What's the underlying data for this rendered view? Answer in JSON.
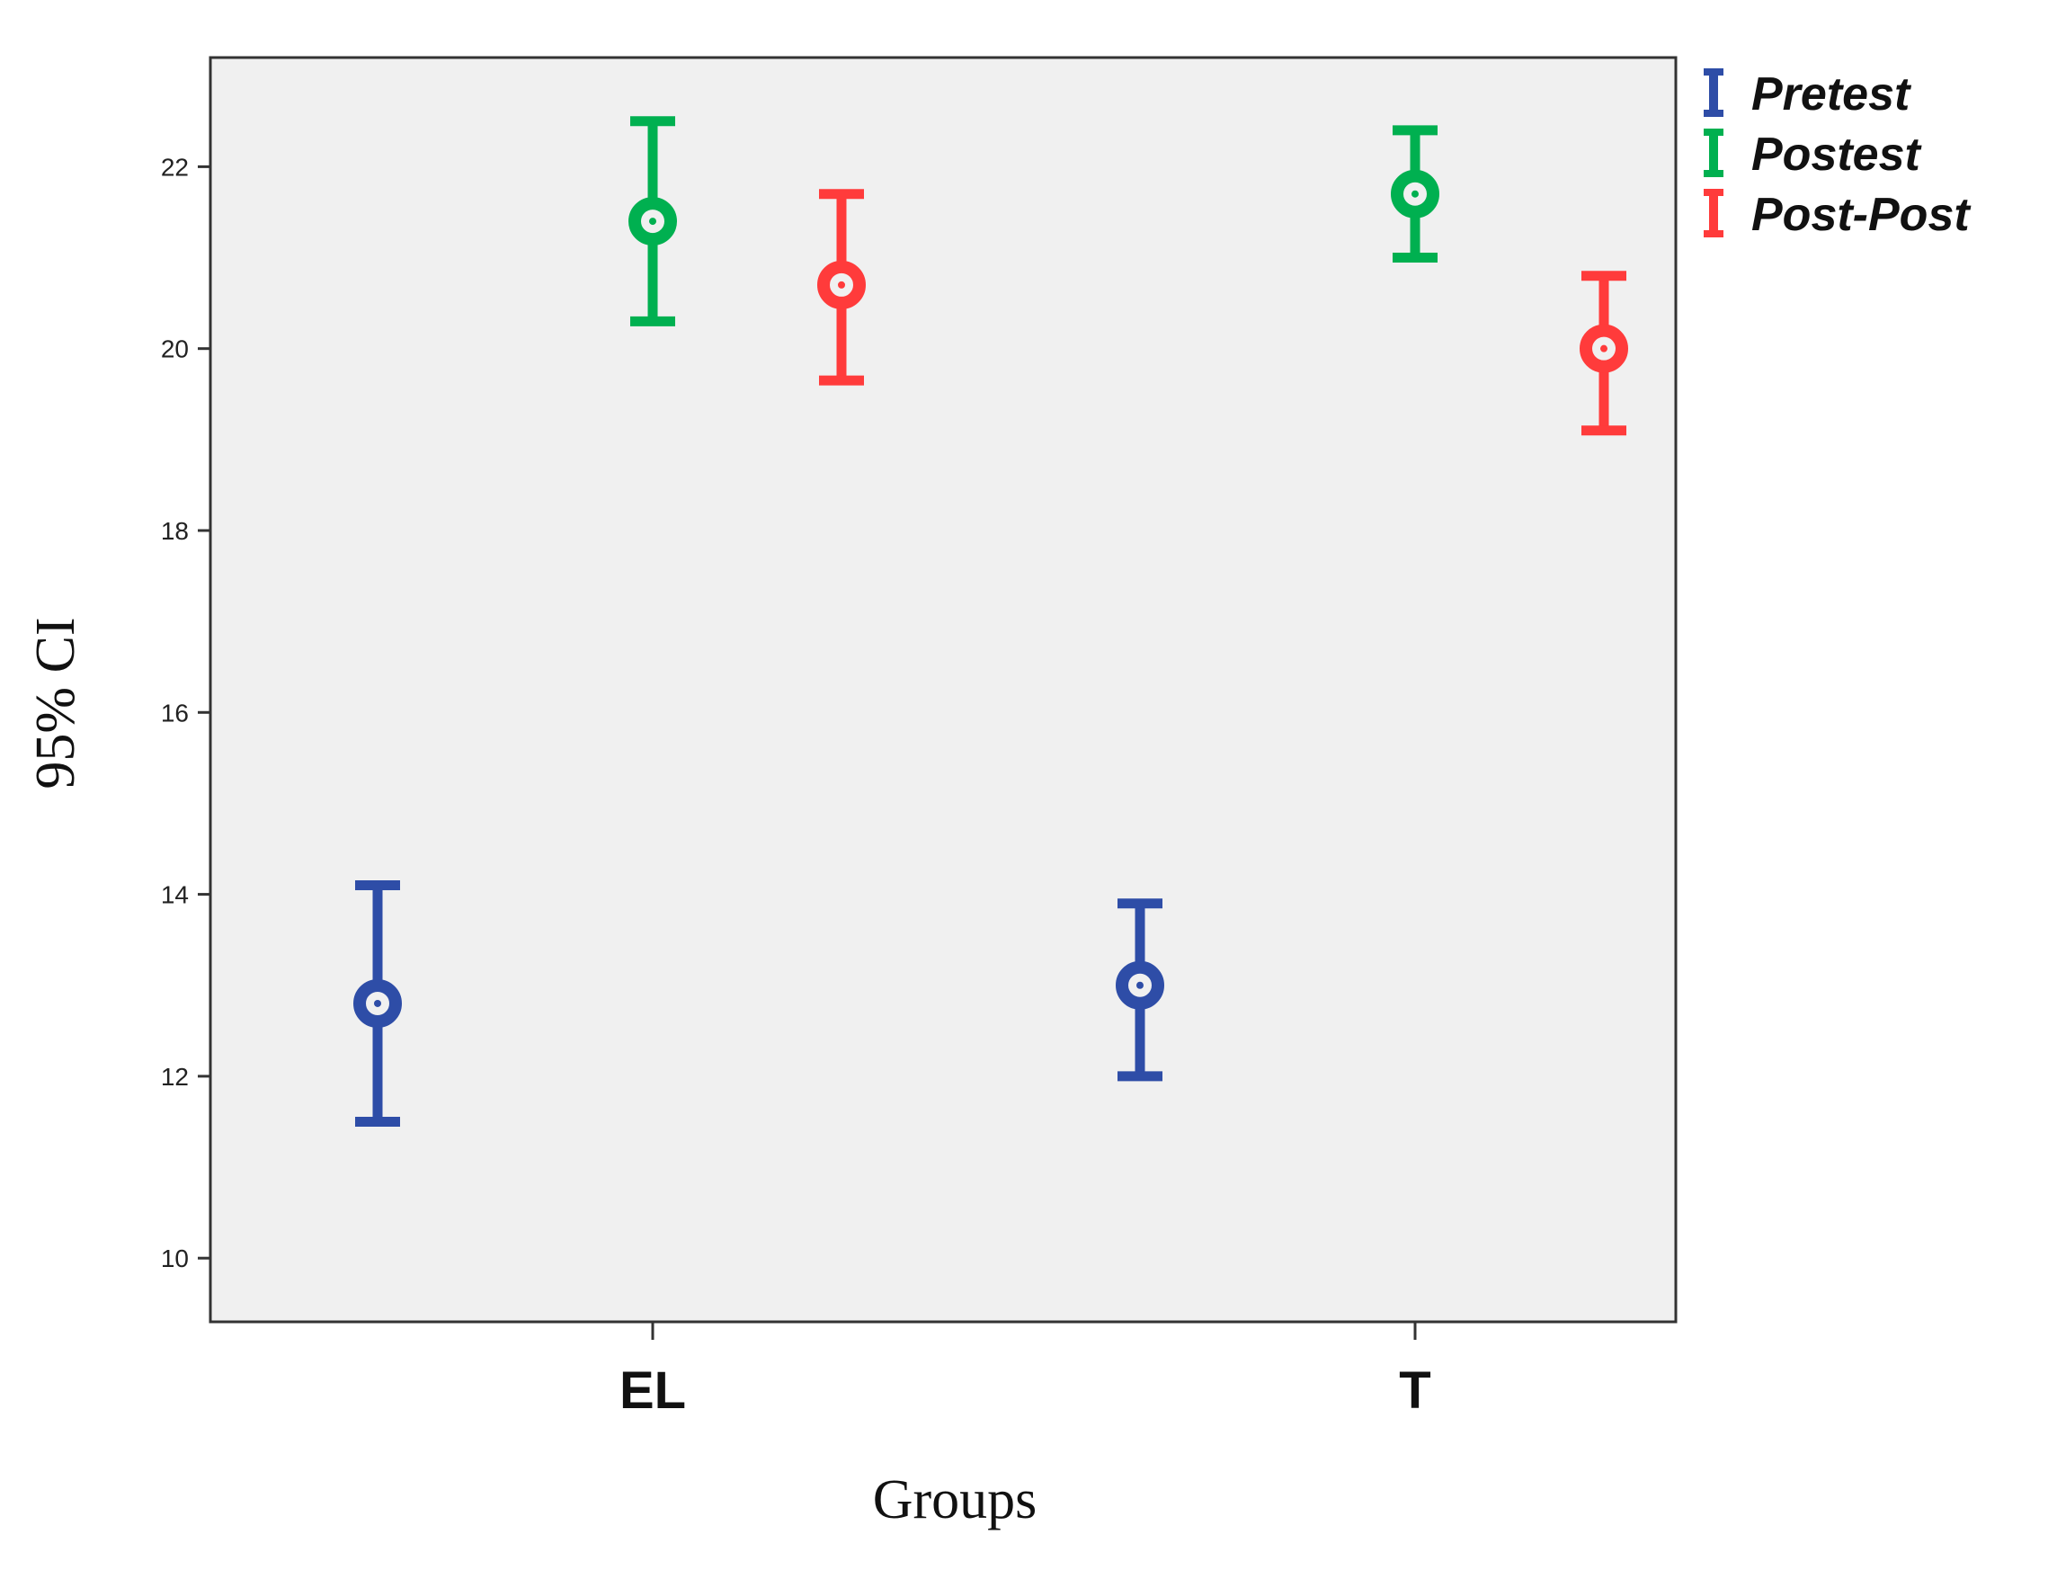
{
  "chart_data": {
    "type": "errorbar",
    "categories": [
      "EL",
      "T"
    ],
    "xlabel": "Groups",
    "ylabel": "95% CI",
    "ylim": [
      9.3,
      23.2
    ],
    "yticks": [
      10,
      12,
      14,
      16,
      18,
      20,
      22
    ],
    "grid": false,
    "legend_position": "top-right, outside plot",
    "series": [
      {
        "name": "Pretest",
        "color": "#2E4DA7",
        "means": [
          12.8,
          13.0
        ],
        "lower": [
          11.5,
          12.0
        ],
        "upper": [
          14.1,
          13.9
        ]
      },
      {
        "name": "Postest",
        "color": "#00B050",
        "means": [
          21.4,
          21.7
        ],
        "lower": [
          20.3,
          21.0
        ],
        "upper": [
          22.5,
          22.4
        ]
      },
      {
        "name": "Post-Post",
        "color": "#FF3B3B",
        "means": [
          20.7,
          20.0
        ],
        "lower": [
          19.65,
          19.1
        ],
        "upper": [
          21.7,
          20.8
        ]
      }
    ]
  }
}
